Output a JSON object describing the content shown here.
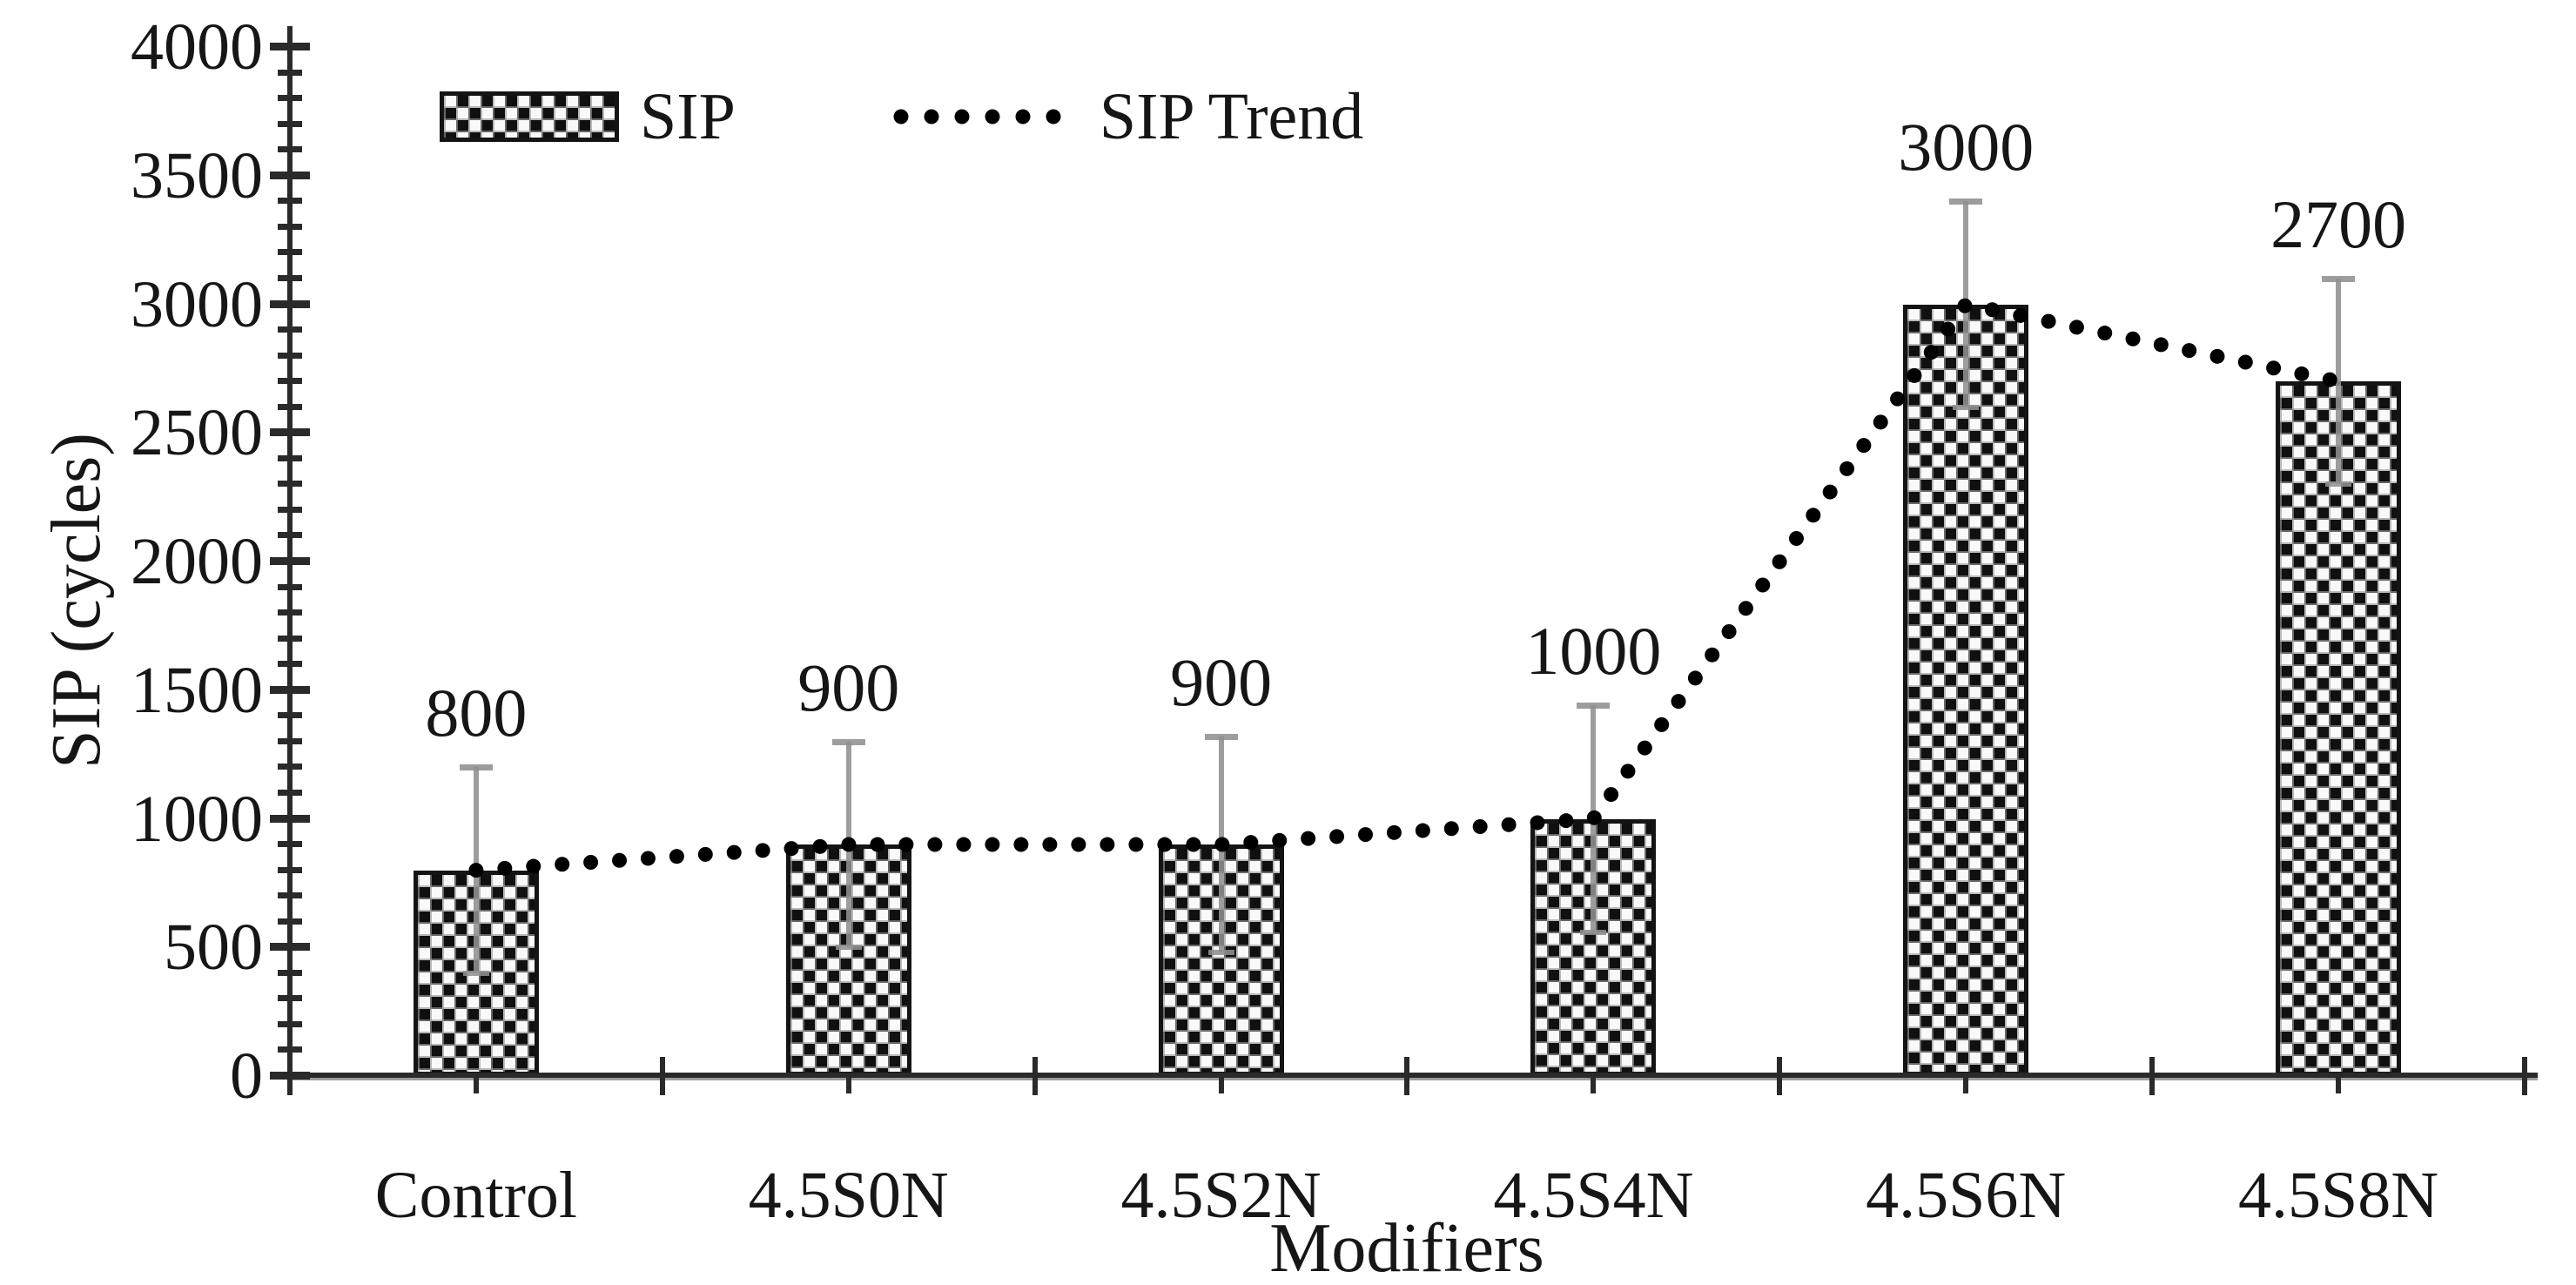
{
  "chart_data": {
    "type": "bar",
    "title": "",
    "categories": [
      "Control",
      "4.5S0N",
      "4.5S2N",
      "4.5S4N",
      "4.5S6N",
      "4.5S8N"
    ],
    "series": [
      {
        "name": "SIP",
        "values": [
          800,
          900,
          900,
          1000,
          3000,
          2700
        ],
        "data_labels": [
          "800",
          "900",
          "900",
          "1000",
          "3000",
          "2700"
        ],
        "error_low": [
          400,
          500,
          480,
          560,
          2600,
          2300
        ],
        "error_high": [
          1200,
          1300,
          1320,
          1440,
          3400,
          3100
        ],
        "fill": "black-white-checkerboard"
      }
    ],
    "trend": {
      "name": "SIP Trend",
      "values": [
        800,
        900,
        900,
        1000,
        3000,
        2700
      ],
      "style": "dotted"
    },
    "xlabel": "Modifiers",
    "ylabel": "SIP (cycles)",
    "ylim": [
      0,
      4000
    ],
    "ytick_major_step": 500,
    "ytick_minor_step": 100,
    "y_tick_labels": [
      "0",
      "500",
      "1000",
      "1500",
      "2000",
      "2500",
      "3000",
      "3500",
      "4000"
    ],
    "grid": false,
    "legend_position": "top-left",
    "legend_entries": [
      "SIP",
      "SIP Trend"
    ],
    "colors": {
      "bar_dark": "#101010",
      "bar_light": "#f9f9f9",
      "bar_border": "#141414",
      "error_bar": "#8f8f8f",
      "trend_dot": "#000000",
      "axis": "#2a2a2a",
      "text": "#161616",
      "background": "#ffffff"
    }
  }
}
